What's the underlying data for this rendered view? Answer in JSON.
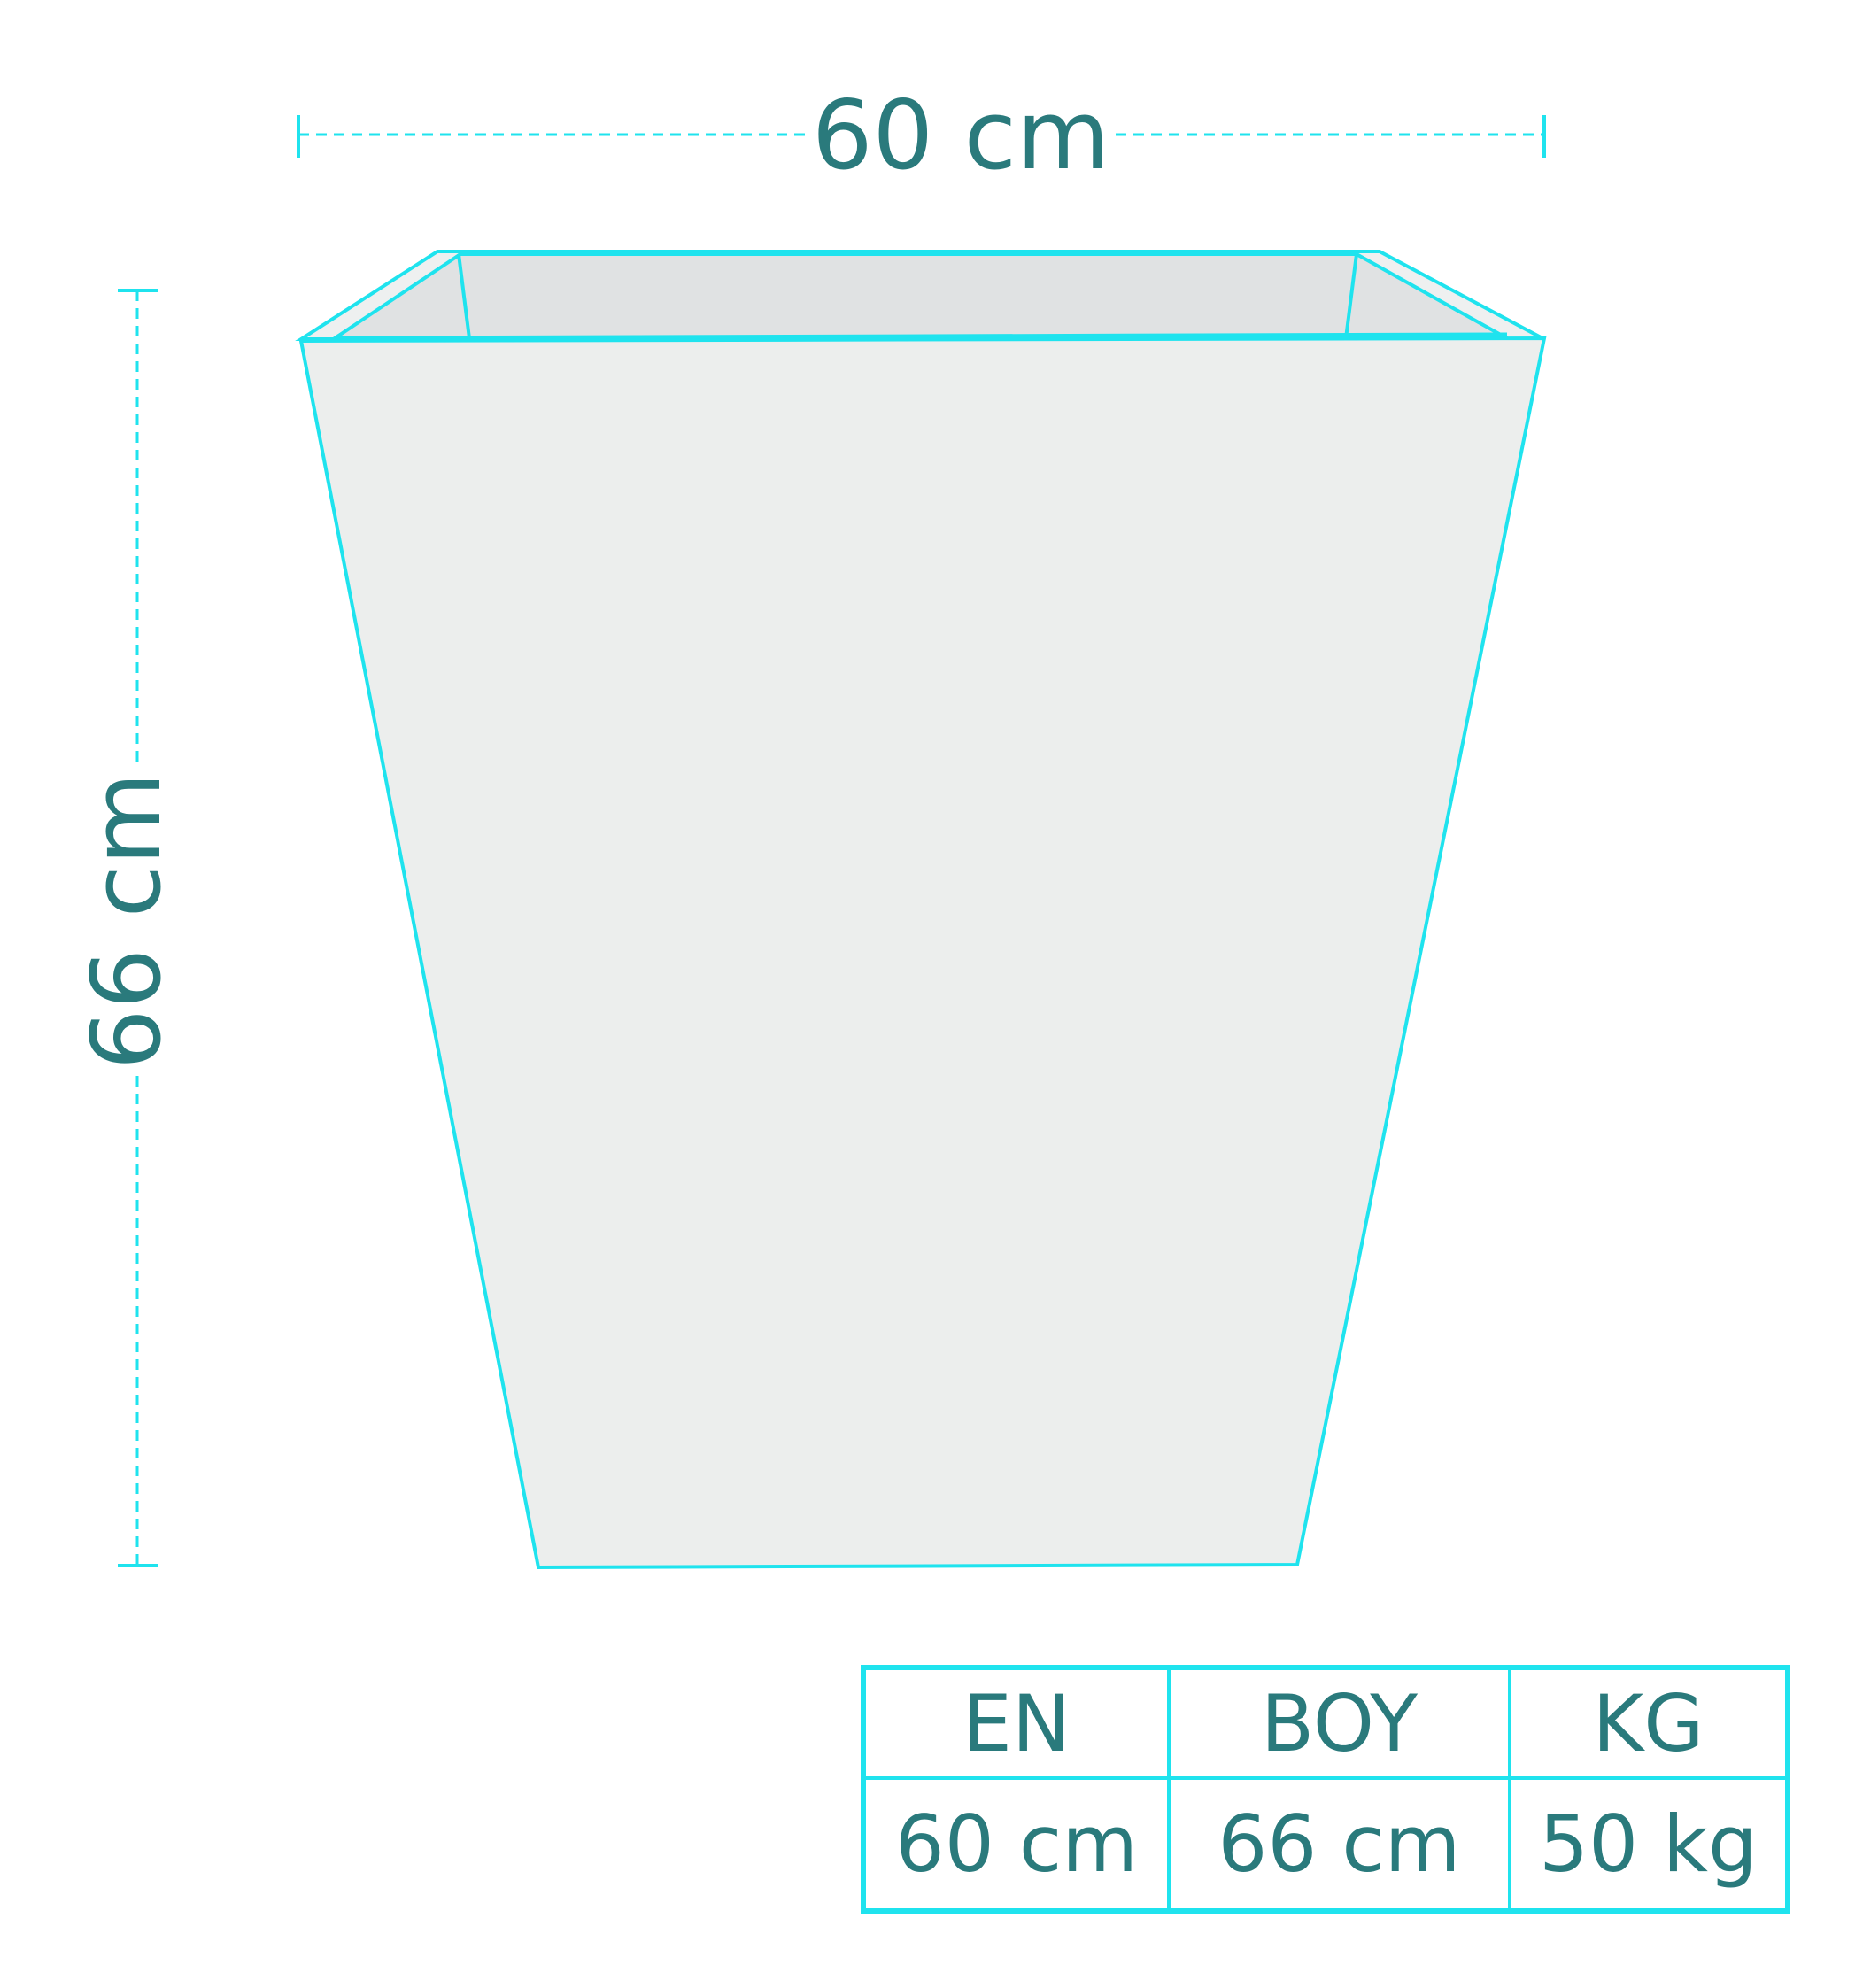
{
  "dimensions": {
    "width_label": "60 cm",
    "height_label": "66 cm"
  },
  "spec_table": {
    "headers": [
      "EN",
      "BOY",
      "KG"
    ],
    "values": [
      "60 cm",
      "66 cm",
      "50 kg"
    ]
  },
  "colors": {
    "outline": "#1fe3ee",
    "text": "#2a7a7c",
    "planter_front": "#eceeed",
    "planter_inner": "#e0e2e3"
  }
}
